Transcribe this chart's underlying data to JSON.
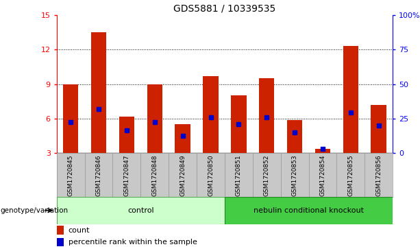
{
  "title": "GDS5881 / 10339535",
  "samples": [
    "GSM1720845",
    "GSM1720846",
    "GSM1720847",
    "GSM1720848",
    "GSM1720849",
    "GSM1720850",
    "GSM1720851",
    "GSM1720852",
    "GSM1720853",
    "GSM1720854",
    "GSM1720855",
    "GSM1720856"
  ],
  "count_values": [
    9.0,
    13.5,
    6.2,
    9.0,
    5.5,
    9.7,
    8.0,
    9.5,
    5.9,
    3.35,
    12.3,
    7.2
  ],
  "percentile_values": [
    5.7,
    6.8,
    5.0,
    5.7,
    4.5,
    6.1,
    5.5,
    6.1,
    4.8,
    3.35,
    6.5,
    5.4
  ],
  "y_min": 3,
  "y_max": 15,
  "y_ticks_left": [
    3,
    6,
    9,
    12,
    15
  ],
  "y_ticks_right_pct": [
    0,
    25,
    50,
    75,
    100
  ],
  "bar_color": "#cc2200",
  "marker_color": "#0000cc",
  "bg_color": "#ffffff",
  "label_bg": "#c8c8c8",
  "control_color": "#ccffcc",
  "knockout_color": "#44cc44",
  "control_label": "control",
  "knockout_label": "nebulin conditional knockout",
  "group_label": "genotype/variation",
  "n_control": 6,
  "n_knockout": 6,
  "legend_count": "count",
  "legend_percentile": "percentile rank within the sample",
  "bar_width": 0.55,
  "grid_lines": [
    6,
    9,
    12
  ]
}
